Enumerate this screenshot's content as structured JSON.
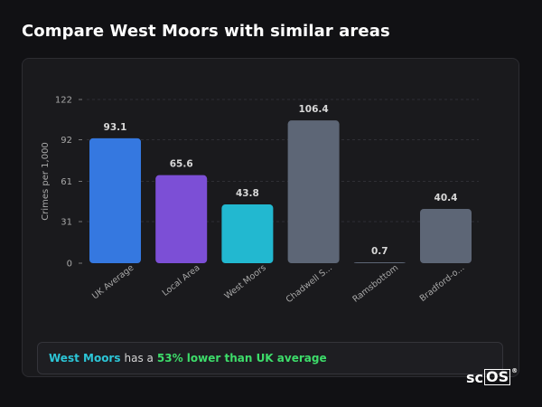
{
  "header": {
    "title": "Compare West Moors with similar areas"
  },
  "chart_data": {
    "type": "bar",
    "ylabel": "Crimes per 1,000",
    "ylim": [
      0,
      122
    ],
    "yticks": [
      0,
      31,
      61,
      92,
      122
    ],
    "grid": true,
    "categories": [
      "UK Average",
      "Local Area",
      "West Moors",
      "Chadwell S...",
      "Ramsbottom",
      "Bradford-o..."
    ],
    "values": [
      93.1,
      65.6,
      43.8,
      106.4,
      0.7,
      40.4
    ],
    "value_labels": [
      "93.1",
      "65.6",
      "43.8",
      "106.4",
      "0.7",
      "40.4"
    ],
    "colors": [
      "#3578e0",
      "#7c4fd6",
      "#22b8d0",
      "#5d6676",
      "#5d6676",
      "#5d6676"
    ]
  },
  "summary": {
    "area": "West Moors",
    "middle": "has a",
    "comparison": "53% lower than UK average"
  },
  "logo": {
    "text_plain": "sc",
    "text_boxed": "OS",
    "mark": "®"
  }
}
